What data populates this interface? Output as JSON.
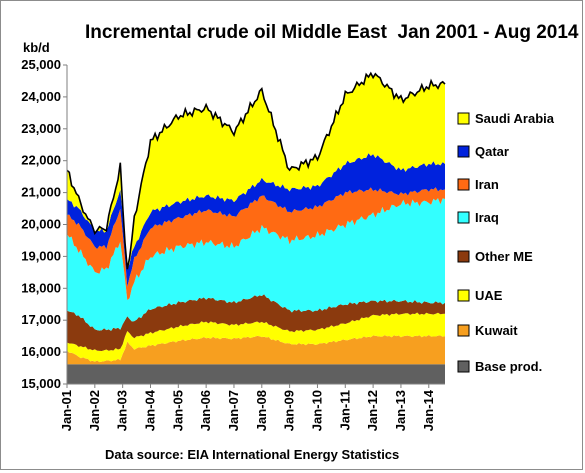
{
  "chart_data": {
    "type": "area",
    "stacked": true,
    "title": "Incremental crude oil Middle East  Jan 2001 - Aug 2014",
    "ylabel": "kb/d",
    "source_note": "Data source: EIA International Energy Statistics",
    "ylim": [
      15000,
      25000
    ],
    "yticks": [
      "15,000",
      "16,000",
      "17,000",
      "18,000",
      "19,000",
      "20,000",
      "21,000",
      "22,000",
      "23,000",
      "24,000",
      "25,000"
    ],
    "xticks": [
      "Jan-01",
      "Jan-02",
      "Jan-03",
      "Jan-04",
      "Jan-05",
      "Jan-06",
      "Jan-07",
      "Jan-08",
      "Jan-09",
      "Jan-10",
      "Jan-11",
      "Jan-12",
      "Jan-13",
      "Jan-14"
    ],
    "x_start": "2001-01",
    "x_end": "2014-08",
    "base_value": 15000,
    "legend_placement": "right",
    "series": [
      {
        "name": "Base prod.",
        "color": "#606060",
        "x": [
          "2001-01",
          "2014-08"
        ],
        "cumulative": [
          15620,
          15620
        ]
      },
      {
        "name": "Kuwait",
        "color": "#f79f1f",
        "x": [
          "2001-01",
          "2001-06",
          "2002-01",
          "2002-06",
          "2002-12",
          "2003-03",
          "2003-06",
          "2004-01",
          "2005-01",
          "2006-01",
          "2007-01",
          "2008-01",
          "2009-01",
          "2010-01",
          "2011-01",
          "2012-01",
          "2013-01",
          "2014-01",
          "2014-08"
        ],
        "cumulative": [
          16050,
          15860,
          15700,
          15720,
          15760,
          16300,
          16100,
          16200,
          16350,
          16450,
          16420,
          16500,
          16250,
          16250,
          16380,
          16500,
          16500,
          16500,
          16500
        ]
      },
      {
        "name": "UAE",
        "color": "#ffff00",
        "x": [
          "2001-01",
          "2001-06",
          "2002-01",
          "2002-06",
          "2002-12",
          "2003-03",
          "2003-06",
          "2004-01",
          "2005-01",
          "2006-01",
          "2007-01",
          "2008-01",
          "2009-01",
          "2010-01",
          "2011-01",
          "2012-01",
          "2013-01",
          "2014-01",
          "2014-08"
        ],
        "cumulative": [
          16300,
          16200,
          16050,
          16050,
          16100,
          16650,
          16450,
          16600,
          16800,
          16950,
          16850,
          16950,
          16650,
          16700,
          16900,
          17150,
          17200,
          17200,
          17200
        ]
      },
      {
        "name": "Other ME",
        "color": "#8b3a0e",
        "x": [
          "2001-01",
          "2001-06",
          "2002-01",
          "2002-06",
          "2002-12",
          "2003-03",
          "2003-06",
          "2004-01",
          "2005-01",
          "2006-01",
          "2007-01",
          "2008-01",
          "2009-01",
          "2010-01",
          "2011-01",
          "2012-01",
          "2013-01",
          "2014-01",
          "2014-08"
        ],
        "cumulative": [
          17300,
          17150,
          16700,
          16700,
          16750,
          17100,
          16950,
          17350,
          17550,
          17700,
          17550,
          17800,
          17300,
          17300,
          17500,
          17600,
          17600,
          17550,
          17550
        ]
      },
      {
        "name": "Iraq",
        "color": "#33ffff",
        "x": [
          "2001-01",
          "2001-06",
          "2002-01",
          "2002-06",
          "2002-12",
          "2003-03",
          "2003-06",
          "2004-01",
          "2005-01",
          "2006-01",
          "2007-01",
          "2008-01",
          "2009-01",
          "2010-01",
          "2011-01",
          "2012-01",
          "2013-01",
          "2014-01",
          "2014-08"
        ],
        "cumulative": [
          19700,
          19200,
          18500,
          18600,
          19500,
          17600,
          18200,
          19000,
          19300,
          19450,
          19300,
          19900,
          19500,
          19650,
          20000,
          20300,
          20650,
          20700,
          20800
        ]
      },
      {
        "name": "Iran",
        "color": "#ff6a13",
        "x": [
          "2001-01",
          "2001-06",
          "2002-01",
          "2002-06",
          "2002-12",
          "2003-03",
          "2003-06",
          "2004-01",
          "2005-01",
          "2006-01",
          "2007-01",
          "2008-01",
          "2009-01",
          "2010-01",
          "2011-01",
          "2012-01",
          "2013-01",
          "2014-01",
          "2014-08"
        ],
        "cumulative": [
          20300,
          20000,
          19300,
          19300,
          20500,
          18100,
          18900,
          19900,
          20200,
          20450,
          20250,
          20900,
          20400,
          20550,
          21000,
          21100,
          20950,
          21100,
          21100
        ]
      },
      {
        "name": "Qatar",
        "color": "#0022dd",
        "x": [
          "2001-01",
          "2001-06",
          "2002-01",
          "2002-06",
          "2002-12",
          "2003-03",
          "2003-06",
          "2004-01",
          "2005-01",
          "2006-01",
          "2007-01",
          "2008-01",
          "2009-01",
          "2010-01",
          "2011-01",
          "2012-01",
          "2013-01",
          "2014-01",
          "2014-08"
        ],
        "cumulative": [
          20800,
          20500,
          19800,
          19800,
          21100,
          18600,
          19300,
          20400,
          20700,
          20900,
          20750,
          21400,
          21100,
          21200,
          21900,
          22200,
          21700,
          21900,
          21900
        ]
      },
      {
        "name": "Saudi Arabia",
        "color": "#ffff00",
        "x": [
          "2001-01",
          "2001-06",
          "2002-01",
          "2002-06",
          "2002-12",
          "2003-03",
          "2003-06",
          "2004-01",
          "2005-01",
          "2006-01",
          "2007-01",
          "2008-01",
          "2009-01",
          "2010-01",
          "2011-01",
          "2012-01",
          "2013-01",
          "2014-01",
          "2014-08"
        ],
        "cumulative": [
          21700,
          20800,
          19700,
          19900,
          21800,
          18200,
          20200,
          22600,
          23400,
          23650,
          22900,
          24200,
          21700,
          22100,
          24050,
          24750,
          23900,
          24350,
          24400
        ]
      }
    ]
  }
}
